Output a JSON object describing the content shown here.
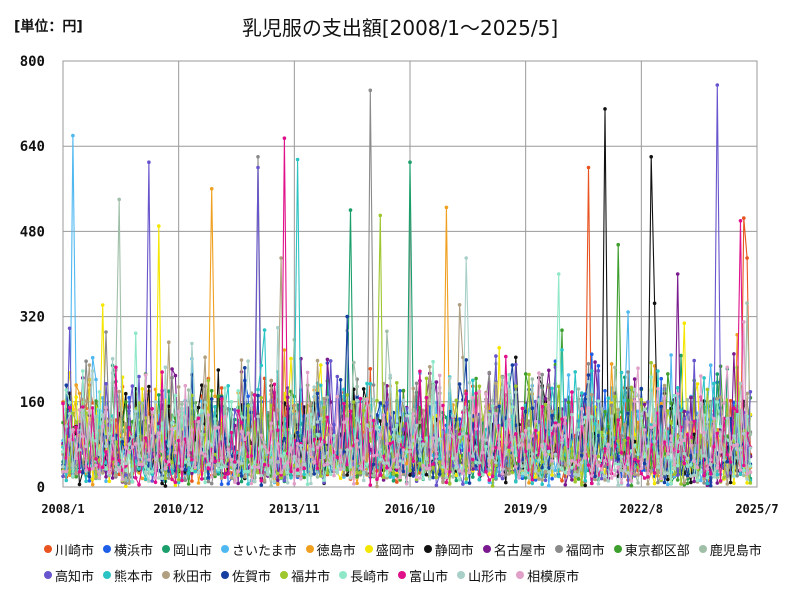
{
  "unit_label": "[単位：円]",
  "chart_data": {
    "type": "line",
    "title": "乳児服の支出額[2008/1〜2025/5]",
    "ylim": [
      0,
      800
    ],
    "yticks": [
      "0",
      "160",
      "320",
      "480",
      "640",
      "800"
    ],
    "ytick_values": [
      0,
      160,
      320,
      480,
      640,
      800
    ],
    "xrange": [
      0,
      210
    ],
    "xticks": [
      {
        "label": "2008/1",
        "month_index": 0
      },
      {
        "label": "2010/12",
        "month_index": 35
      },
      {
        "label": "2013/11",
        "month_index": 70
      },
      {
        "label": "2016/10",
        "month_index": 105
      },
      {
        "label": "2019/9",
        "month_index": 140
      },
      {
        "label": "2022/8",
        "month_index": 175
      },
      {
        "label": "2025/7",
        "month_index": 210
      }
    ],
    "months_count": 209,
    "series": [
      {
        "name": "川崎市",
        "color": "#e8531f",
        "seed": 11,
        "peaks": [
          [
            159,
            600
          ],
          [
            206,
            505
          ],
          [
            207,
            430
          ]
        ]
      },
      {
        "name": "横浜市",
        "color": "#1f5fe8",
        "seed": 12,
        "peaks": [
          [
            55,
            200
          ]
        ]
      },
      {
        "name": "岡山市",
        "color": "#1a9e6a",
        "seed": 13,
        "peaks": [
          [
            87,
            520
          ],
          [
            105,
            610
          ]
        ]
      },
      {
        "name": "さいたま市",
        "color": "#4fb8f0",
        "seed": 14,
        "peaks": [
          [
            3,
            660
          ]
        ]
      },
      {
        "name": "徳島市",
        "color": "#f0a020",
        "seed": 15,
        "peaks": [
          [
            116,
            525
          ],
          [
            45,
            560
          ]
        ]
      },
      {
        "name": "盛岡市",
        "color": "#f5e600",
        "seed": 16,
        "peaks": [
          [
            29,
            490
          ]
        ]
      },
      {
        "name": "静岡市",
        "color": "#111111",
        "seed": 17,
        "peaks": [
          [
            164,
            710
          ],
          [
            178,
            620
          ],
          [
            179,
            345
          ]
        ]
      },
      {
        "name": "名古屋市",
        "color": "#7a1a8e",
        "seed": 18,
        "peaks": [
          [
            186,
            400
          ]
        ]
      },
      {
        "name": "福岡市",
        "color": "#8a8a8a",
        "seed": 19,
        "peaks": [
          [
            93,
            745
          ],
          [
            59,
            620
          ]
        ]
      },
      {
        "name": "東京都区部",
        "color": "#3e9e2e",
        "seed": 20,
        "peaks": [
          [
            168,
            455
          ]
        ]
      },
      {
        "name": "鹿児島市",
        "color": "#9fbfa8",
        "seed": 21,
        "peaks": [
          [
            17,
            540
          ]
        ]
      },
      {
        "name": "高知市",
        "color": "#6655cc",
        "seed": 22,
        "peaks": [
          [
            26,
            610
          ],
          [
            59,
            600
          ],
          [
            198,
            755
          ]
        ]
      },
      {
        "name": "熊本市",
        "color": "#2bc4c4",
        "seed": 23,
        "peaks": [
          [
            71,
            615
          ]
        ]
      },
      {
        "name": "秋田市",
        "color": "#b0a080",
        "seed": 24,
        "peaks": [
          [
            66,
            430
          ]
        ]
      },
      {
        "name": "佐賀市",
        "color": "#1540a0",
        "seed": 25,
        "peaks": [
          [
            86,
            320
          ]
        ]
      },
      {
        "name": "福井市",
        "color": "#9ec62e",
        "seed": 26,
        "peaks": [
          [
            96,
            510
          ]
        ]
      },
      {
        "name": "長崎市",
        "color": "#8ee8c8",
        "seed": 27,
        "peaks": [
          [
            150,
            400
          ]
        ]
      },
      {
        "name": "富山市",
        "color": "#e0108a",
        "seed": 28,
        "peaks": [
          [
            67,
            655
          ],
          [
            205,
            500
          ]
        ]
      },
      {
        "name": "山形市",
        "color": "#a8d0c8",
        "seed": 29,
        "peaks": [
          [
            122,
            430
          ]
        ]
      },
      {
        "name": "相模原市",
        "color": "#e0a0c8",
        "seed": 30,
        "peaks": [
          [
            206,
            310
          ]
        ]
      }
    ]
  }
}
